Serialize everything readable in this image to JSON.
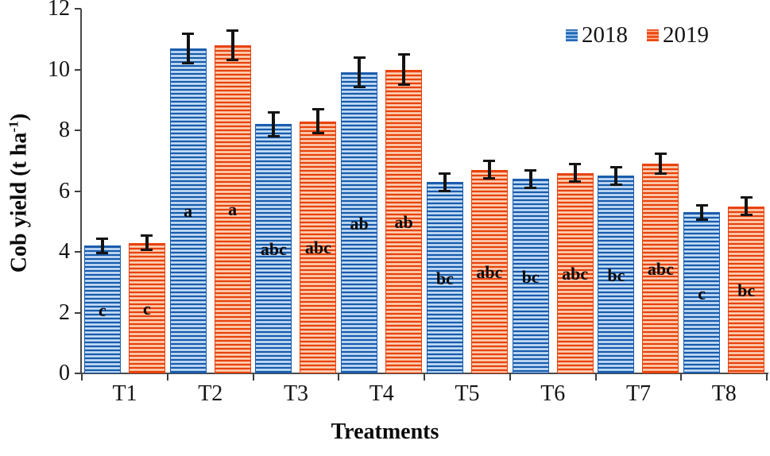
{
  "figure": {
    "background": "#ffffff",
    "axis_color": "#4a4a4a"
  },
  "chart_data": {
    "type": "bar",
    "title": "",
    "xlabel": "Treatments",
    "ylabel": "Cob yield (t ha⁻¹)",
    "categories": [
      "T1",
      "T2",
      "T3",
      "T4",
      "T5",
      "T6",
      "T7",
      "T8"
    ],
    "ylim": [
      0,
      12
    ],
    "yticks": [
      0,
      2,
      4,
      6,
      8,
      10,
      12
    ],
    "grid": false,
    "legend_position": "top-right",
    "error_bars": true,
    "bar_hatch": "horizontal-stripes",
    "series": [
      {
        "name": "2018",
        "color": "#2f74c4",
        "values": [
          4.2,
          10.7,
          8.2,
          9.9,
          6.3,
          6.4,
          6.5,
          5.3
        ],
        "errors": [
          0.25,
          0.5,
          0.4,
          0.5,
          0.3,
          0.3,
          0.3,
          0.25
        ],
        "sig_labels": [
          "c",
          "a",
          "abc",
          "ab",
          "bc",
          "bc",
          "bc",
          "c"
        ]
      },
      {
        "name": "2019",
        "color": "#f0511c",
        "values": [
          4.3,
          10.8,
          8.3,
          10.0,
          6.7,
          6.6,
          6.9,
          5.5
        ],
        "errors": [
          0.25,
          0.5,
          0.4,
          0.5,
          0.3,
          0.3,
          0.35,
          0.3
        ],
        "sig_labels": [
          "c",
          "a",
          "abc",
          "ab",
          "abc",
          "abc",
          "abc",
          "bc"
        ]
      }
    ]
  }
}
